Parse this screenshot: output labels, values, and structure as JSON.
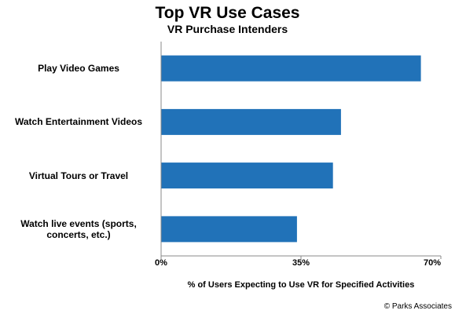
{
  "chart_data": {
    "type": "bar",
    "orientation": "horizontal",
    "title": "Top VR Use Cases",
    "subtitle": "VR Purchase Intenders",
    "categories": [
      "Play Video Games",
      "Watch Entertainment Videos",
      "Virtual Tours or Travel",
      "Watch live events (sports, concerts, etc.)"
    ],
    "values": [
      65,
      45,
      43,
      34
    ],
    "xlim": [
      0,
      70
    ],
    "xticks": [
      0,
      35,
      70
    ],
    "tick_labels": [
      "0%",
      "35%",
      "70%"
    ],
    "xlabel": "% of Users Expecting to Use VR for Specified Activities",
    "ylabel": "",
    "bar_color": "#2172B8",
    "grid": false,
    "legend": "none"
  },
  "source": "© Parks Associates"
}
